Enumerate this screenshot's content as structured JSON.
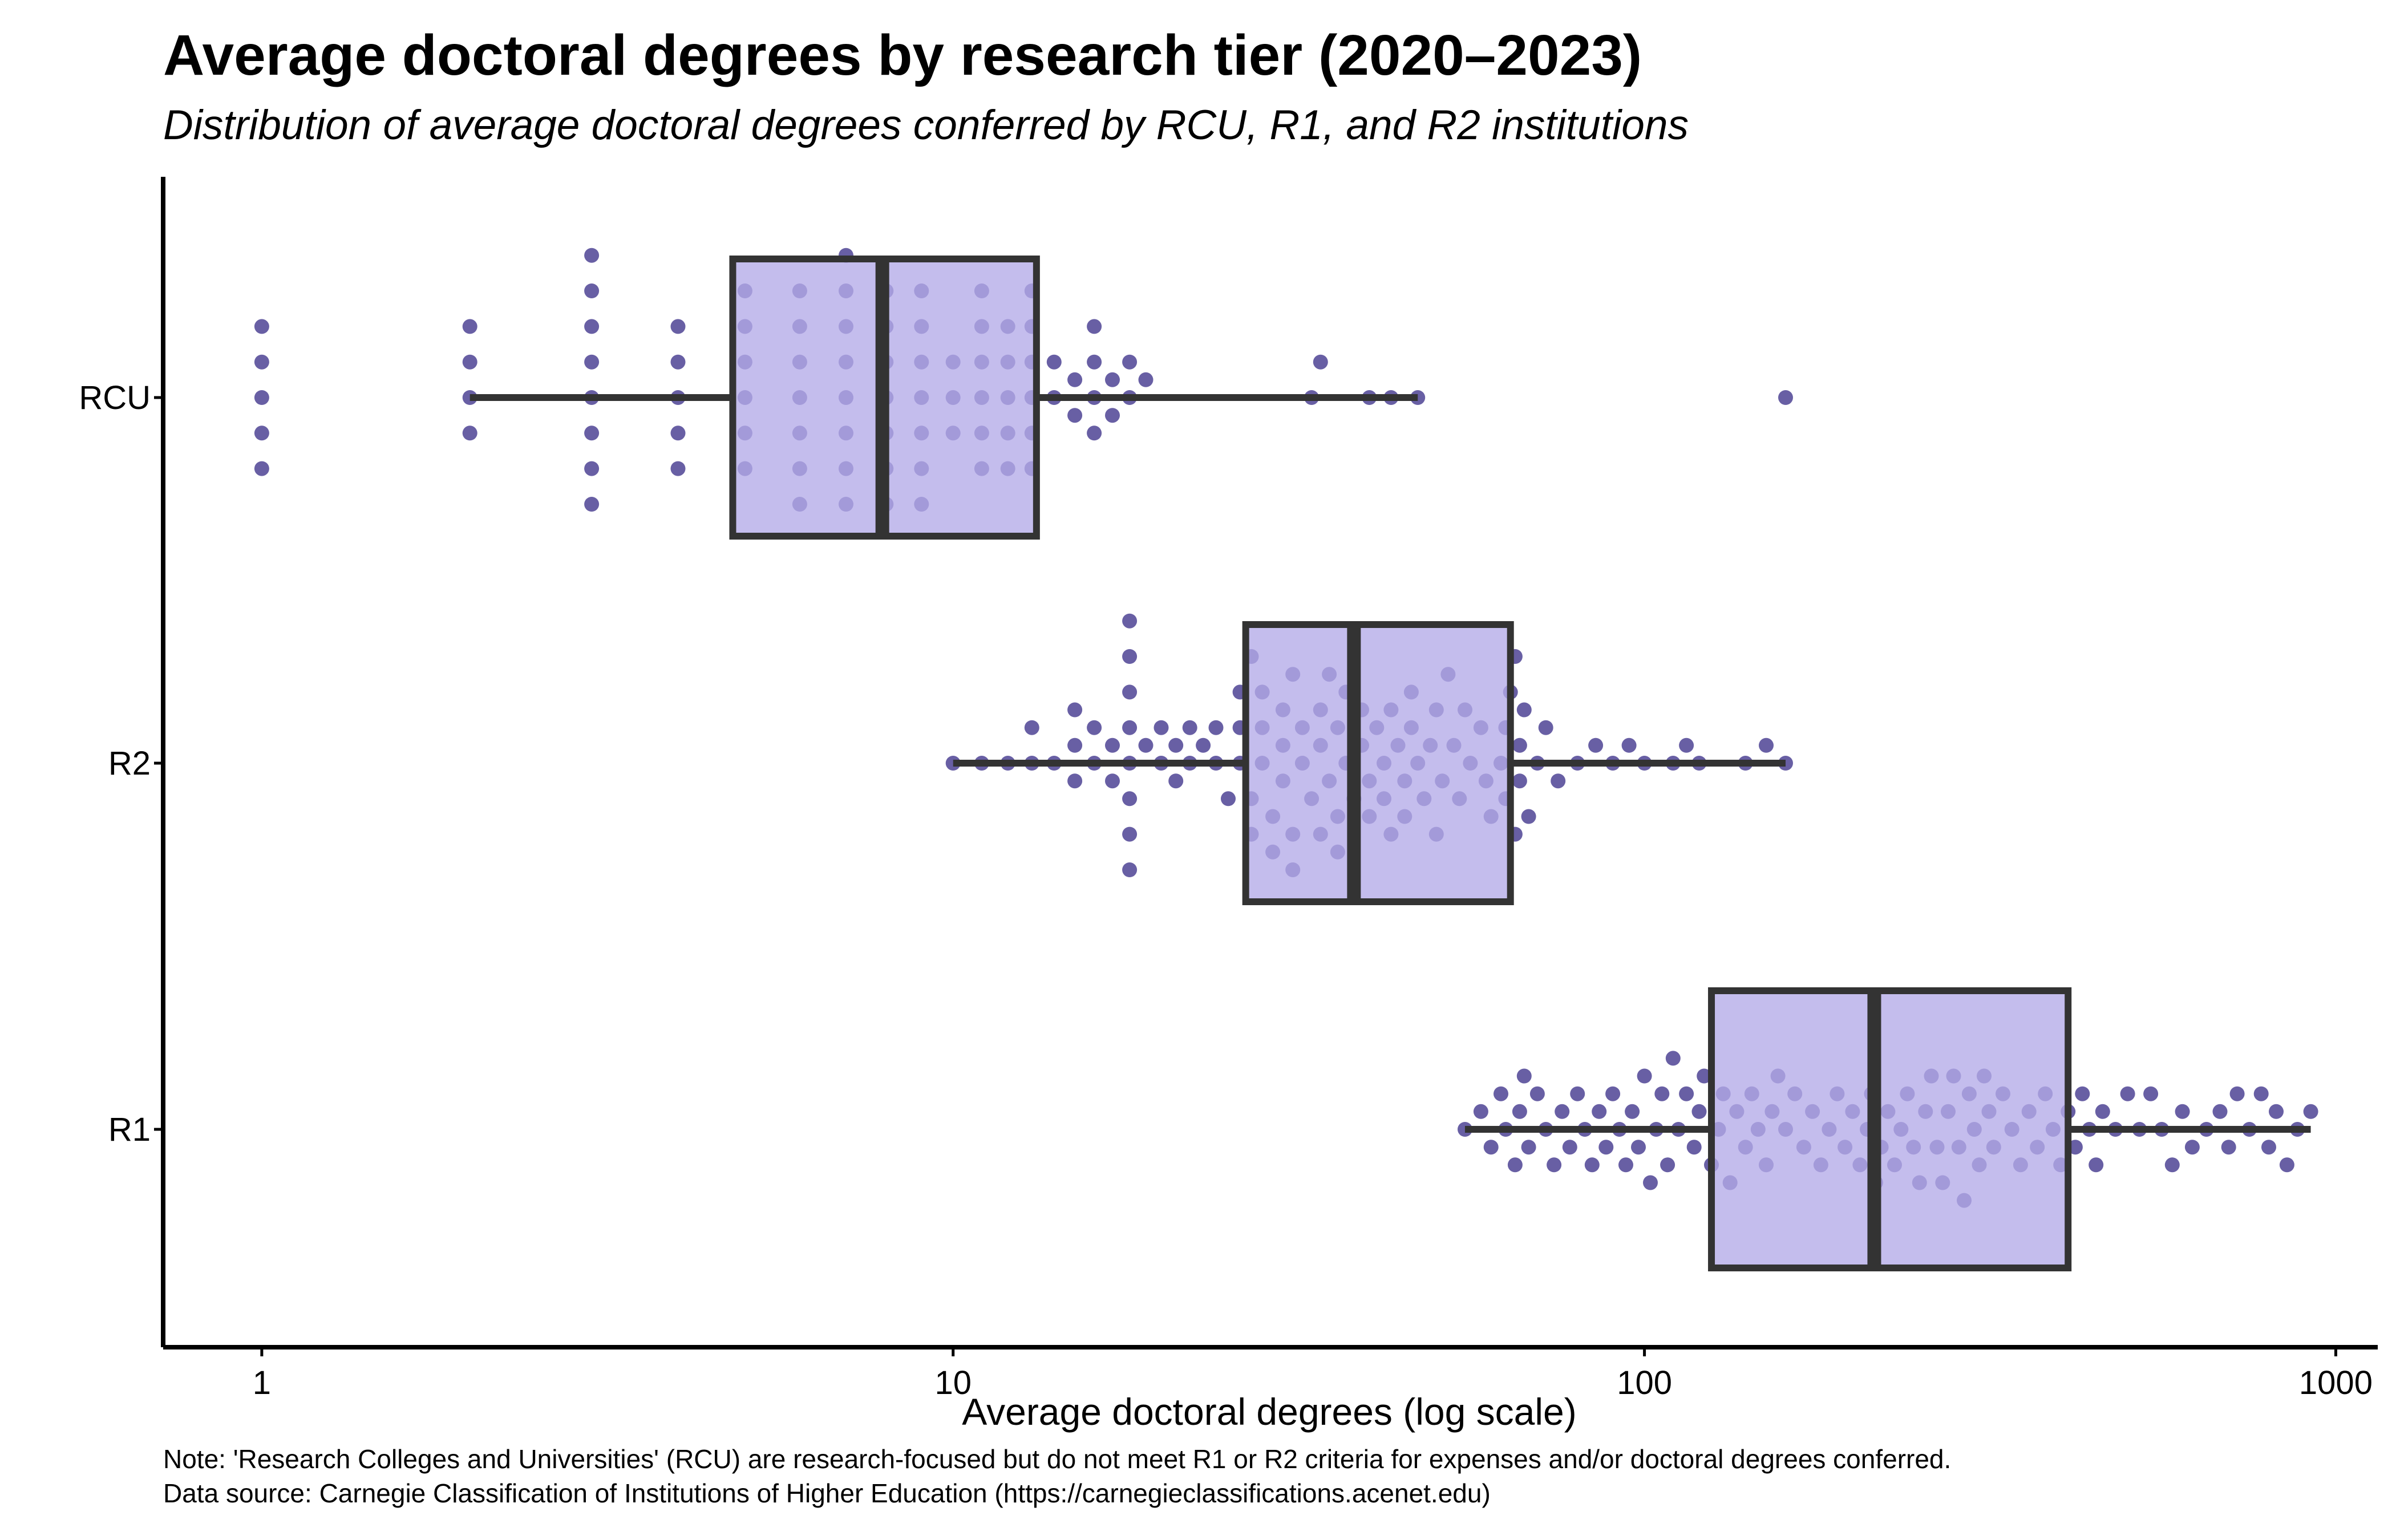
{
  "title": "Average doctoral degrees by research tier (2020–2023)",
  "subtitle": "Distribution of average doctoral degrees conferred by RCU, R1, and R2 institutions",
  "note_line1": "Note: 'Research Colleges and Universities' (RCU) are research-focused but do not meet R1 or R2 criteria for expenses and/or doctoral degrees conferred.",
  "note_line2": "Data source: Carnegie Classification of Institutions of Higher Education (https://carnegieclassifications.acenet.edu)",
  "colors": {
    "box_fill": "#b3aae8",
    "box_stroke": "#333333",
    "point": "#4e4394",
    "axis": "#000000"
  },
  "chart_data": {
    "type": "boxplot",
    "xlabel": "Average doctoral degrees (log scale)",
    "x_scale": "log10",
    "xlim": [
      0.72,
      1150
    ],
    "x_ticks": [
      1,
      10,
      100,
      1000
    ],
    "x_tick_labels": [
      "1",
      "10",
      "100",
      "1000"
    ],
    "grid": false,
    "legend": "none",
    "categories": [
      "RCU",
      "R2",
      "R1"
    ],
    "boxes": [
      {
        "category": "RCU",
        "whisker_low": 2,
        "q1": 4.8,
        "median": 7.9,
        "q3": 13.2,
        "whisker_high": 47,
        "outliers": [
          1,
          160
        ]
      },
      {
        "category": "R2",
        "whisker_low": 10,
        "q1": 26.5,
        "median": 38,
        "q3": 64,
        "whisker_high": 160,
        "outliers": []
      },
      {
        "category": "R1",
        "whisker_low": 55,
        "q1": 125,
        "median": 215,
        "q3": 410,
        "whisker_high": 920,
        "outliers": []
      }
    ],
    "points": {
      "RCU": [
        1,
        1,
        1,
        1,
        1,
        2,
        2,
        2,
        2,
        3,
        3,
        3,
        3,
        3,
        3,
        3,
        3,
        4,
        4,
        4,
        4,
        4,
        5,
        5,
        5,
        5,
        5,
        5,
        6,
        6,
        6,
        6,
        6,
        6,
        6,
        7,
        7,
        7,
        7,
        7,
        7,
        7,
        7,
        8,
        8,
        8,
        8,
        8,
        8,
        8,
        9,
        9,
        9,
        9,
        9,
        9,
        9,
        10,
        10,
        10,
        11,
        11,
        11,
        11,
        11,
        11,
        12,
        12,
        12,
        12,
        12,
        13,
        13,
        13,
        13,
        13,
        13,
        14,
        14,
        15,
        15,
        16,
        16,
        16,
        16,
        17,
        17,
        18,
        18,
        19,
        33,
        34,
        40,
        43,
        47,
        160
      ],
      "R2": [
        10,
        11,
        12,
        13,
        13,
        14,
        15,
        15,
        15,
        16,
        16,
        17,
        17,
        18,
        18,
        18,
        18,
        18,
        18,
        18,
        18,
        19,
        20,
        20,
        21,
        21,
        22,
        22,
        23,
        24,
        24,
        25,
        26,
        26,
        26,
        27,
        27,
        27,
        28,
        28,
        28,
        29,
        29,
        30,
        30,
        30,
        31,
        31,
        31,
        32,
        32,
        33,
        34,
        34,
        34,
        35,
        35,
        36,
        36,
        36,
        37,
        37,
        38,
        39,
        39,
        40,
        40,
        41,
        42,
        42,
        43,
        43,
        44,
        45,
        45,
        46,
        46,
        47,
        48,
        49,
        50,
        50,
        51,
        52,
        53,
        54,
        55,
        56,
        58,
        59,
        60,
        62,
        63,
        63,
        64,
        65,
        65,
        66,
        66,
        67,
        68,
        70,
        72,
        75,
        80,
        85,
        90,
        95,
        100,
        110,
        115,
        120,
        140,
        150,
        160
      ],
      "R1": [
        55,
        58,
        60,
        62,
        63,
        65,
        66,
        67,
        68,
        70,
        72,
        74,
        76,
        78,
        80,
        82,
        84,
        86,
        88,
        90,
        92,
        94,
        96,
        98,
        100,
        102,
        104,
        106,
        108,
        110,
        112,
        115,
        118,
        120,
        122,
        125,
        128,
        130,
        133,
        136,
        140,
        143,
        146,
        150,
        153,
        156,
        160,
        165,
        170,
        175,
        180,
        185,
        190,
        195,
        200,
        205,
        210,
        213,
        216,
        220,
        225,
        230,
        235,
        240,
        245,
        250,
        255,
        260,
        265,
        270,
        275,
        280,
        285,
        290,
        295,
        300,
        305,
        310,
        315,
        320,
        330,
        340,
        350,
        360,
        370,
        380,
        390,
        400,
        410,
        420,
        430,
        440,
        450,
        460,
        480,
        500,
        520,
        540,
        560,
        580,
        600,
        620,
        650,
        680,
        700,
        720,
        750,
        780,
        800,
        820,
        850,
        880,
        920
      ]
    }
  }
}
